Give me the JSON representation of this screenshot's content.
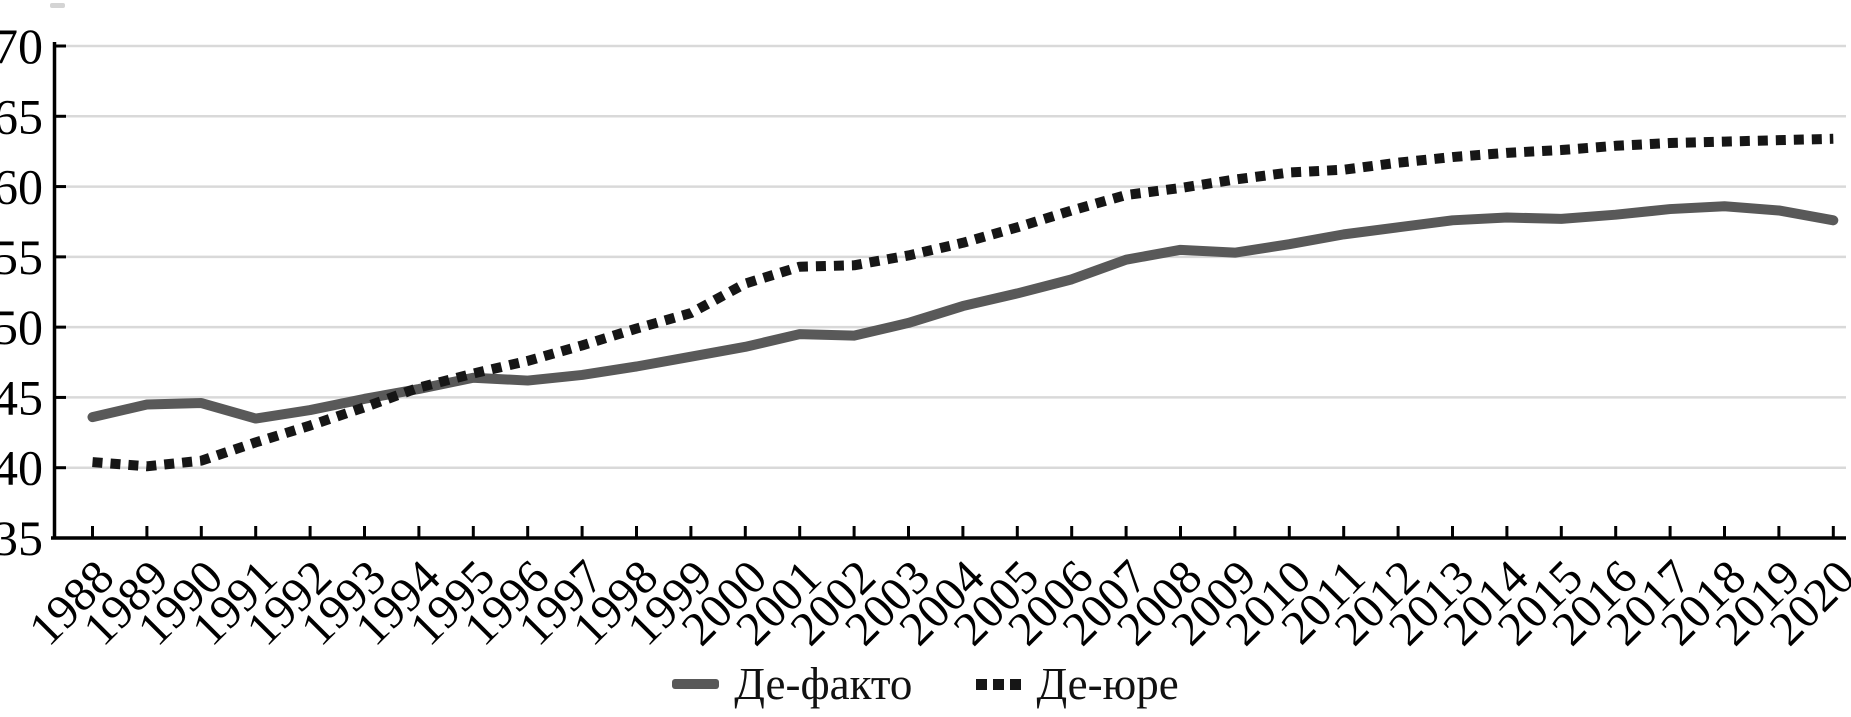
{
  "chart_data": {
    "type": "line",
    "x": [
      "1988",
      "1989",
      "1990",
      "1991",
      "1992",
      "1993",
      "1994",
      "1995",
      "1996",
      "1997",
      "1998",
      "1999",
      "2000",
      "2001",
      "2002",
      "2003",
      "2004",
      "2005",
      "2006",
      "2007",
      "2008",
      "2009",
      "2010",
      "2011",
      "2012",
      "2013",
      "2014",
      "2015",
      "2016",
      "2017",
      "2018",
      "2019",
      "2020"
    ],
    "series": [
      {
        "name": "Де-факто",
        "style": "solid",
        "color": "#595959",
        "values": [
          43.6,
          44.5,
          44.6,
          43.5,
          44.1,
          44.9,
          45.6,
          46.4,
          46.2,
          46.6,
          47.2,
          47.9,
          48.6,
          49.5,
          49.4,
          50.3,
          51.5,
          52.4,
          53.4,
          54.8,
          55.5,
          55.3,
          55.9,
          56.6,
          57.1,
          57.6,
          57.8,
          57.7,
          58.0,
          58.4,
          58.6,
          58.3,
          57.6
        ]
      },
      {
        "name": "Де-юре",
        "style": "dotted",
        "color": "#161616",
        "values": [
          40.4,
          40.1,
          40.5,
          41.8,
          43.0,
          44.3,
          45.7,
          46.7,
          47.6,
          48.7,
          49.9,
          51.0,
          53.1,
          54.3,
          54.4,
          55.1,
          56.0,
          57.1,
          58.3,
          59.4,
          59.9,
          60.5,
          61.0,
          61.2,
          61.7,
          62.1,
          62.4,
          62.6,
          62.9,
          63.1,
          63.2,
          63.3,
          63.4
        ]
      }
    ],
    "title": "",
    "xlabel": "",
    "ylabel": "",
    "ylim": [
      35,
      70
    ],
    "yticks": [
      35,
      40,
      45,
      50,
      55,
      60,
      65,
      70
    ],
    "grid": true,
    "grid_color": "#d9d9d9",
    "axis_color": "#000000",
    "legend_position": "bottom"
  }
}
